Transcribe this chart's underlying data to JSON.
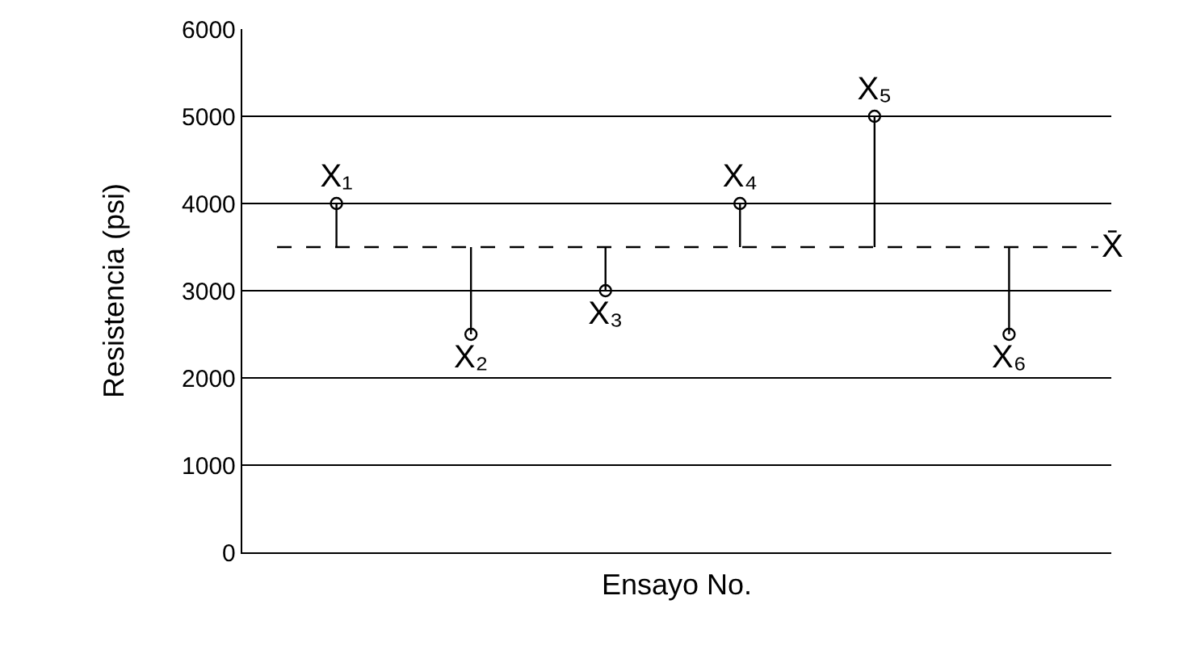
{
  "chart_data": {
    "type": "lollipop",
    "xlabel": "Ensayo No.",
    "ylabel": "Resistencia (psi)",
    "categories": [
      null,
      null,
      null,
      null,
      null,
      null
    ],
    "values": [
      4000,
      2500,
      3000,
      4000,
      5000,
      2500
    ],
    "value_labels": [
      "X₁",
      "X₂",
      "X₃",
      "X₄",
      "X₅",
      "X₆"
    ],
    "color": "#000000",
    "marker": "circle",
    "ylim": [
      0,
      6000
    ],
    "yticks": [
      0,
      1000,
      2000,
      3000,
      4000,
      5000,
      6000
    ],
    "grid": "y",
    "ref_lines": [
      {
        "axis": "y",
        "value": 3500,
        "label": "X̄",
        "line_style": "dashed",
        "color": "#000000"
      }
    ]
  }
}
